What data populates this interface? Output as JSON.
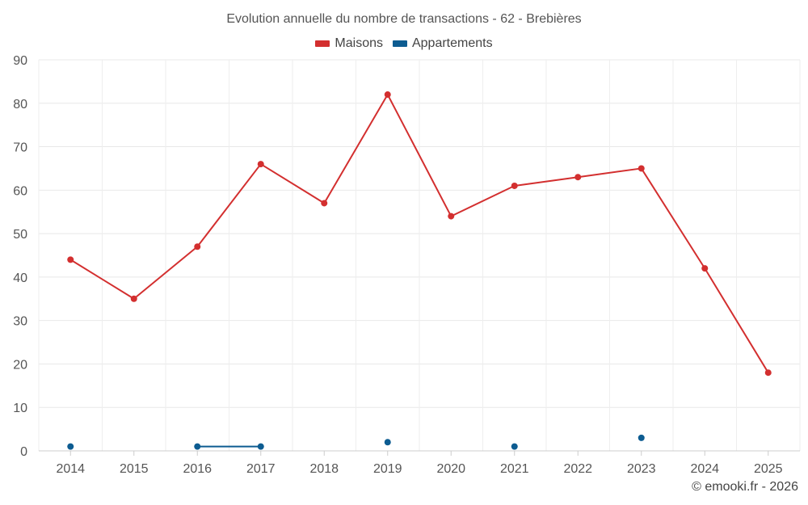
{
  "chart_data": {
    "type": "line",
    "title": "Evolution annuelle du nombre de transactions - 62 - Brebières",
    "xlabel": "",
    "ylabel": "",
    "ylim": [
      0,
      90
    ],
    "yticks": [
      0,
      10,
      20,
      30,
      40,
      50,
      60,
      70,
      80,
      90
    ],
    "categories": [
      "2014",
      "2015",
      "2016",
      "2017",
      "2018",
      "2019",
      "2020",
      "2021",
      "2022",
      "2023",
      "2024",
      "2025"
    ],
    "grid": true,
    "legend_position": "top-center",
    "series": [
      {
        "name": "Maisons",
        "color": "#d32f2f",
        "values": [
          44,
          35,
          47,
          66,
          57,
          82,
          54,
          61,
          63,
          65,
          42,
          18
        ]
      },
      {
        "name": "Appartements",
        "color": "#0d5c91",
        "values": [
          1,
          null,
          1,
          1,
          null,
          2,
          null,
          1,
          null,
          3,
          null,
          null
        ]
      }
    ]
  },
  "credit": "© emooki.fr - 2026"
}
